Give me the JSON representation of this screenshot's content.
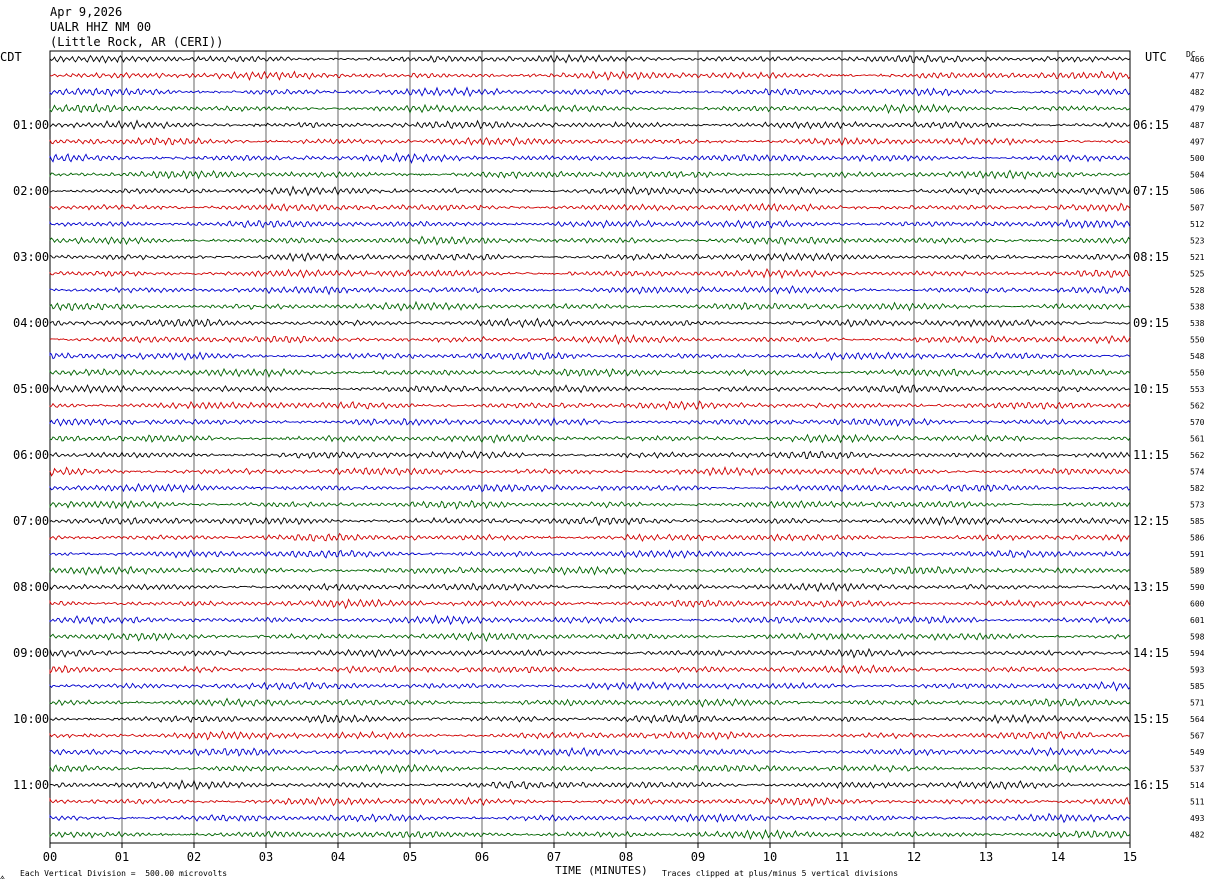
{
  "header": {
    "date": "Apr 9,2026",
    "station": "UALR HHZ NM 00",
    "location": "(Little Rock, AR (CERI))"
  },
  "left_tz": "CDT",
  "right_tz": "UTC",
  "dc_label": "DC",
  "footer": {
    "scale_note": "Each Vertical Division =  500.00 microvolts",
    "xlabel": "TIME (MINUTES)",
    "clip_note": "Traces clipped at plus/minus 5 vertical divisions"
  },
  "colors": {
    "trace_cycle": [
      "#000000",
      "#d00000",
      "#0000cc",
      "#006400"
    ],
    "grid": "#000000"
  },
  "chart_data": {
    "type": "line",
    "title": "UALR HHZ NM 00",
    "xlabel": "TIME (MINUTES)",
    "xlim": [
      0,
      15
    ],
    "x_ticks": [
      "00",
      "01",
      "02",
      "03",
      "04",
      "05",
      "06",
      "07",
      "08",
      "09",
      "10",
      "11",
      "12",
      "13",
      "14",
      "15"
    ],
    "rows_per_hour": 4,
    "left_hour_labels": [
      "01:00",
      "02:00",
      "03:00",
      "04:00",
      "05:00",
      "06:00",
      "07:00",
      "08:00",
      "09:00",
      "10:00",
      "11:00"
    ],
    "right_hour_labels": [
      "06:15",
      "07:15",
      "08:15",
      "09:15",
      "10:15",
      "11:15",
      "12:15",
      "13:15",
      "14:15",
      "15:15",
      "16:15"
    ],
    "dc_offsets": [
      466,
      477,
      482,
      479,
      487,
      497,
      500,
      504,
      506,
      507,
      512,
      523,
      521,
      525,
      528,
      538,
      538,
      550,
      548,
      550,
      553,
      562,
      570,
      561,
      562,
      574,
      582,
      573,
      585,
      586,
      591,
      589,
      590,
      600,
      601,
      598,
      594,
      593,
      585,
      571,
      564,
      567,
      549,
      537,
      514,
      511,
      493,
      482
    ]
  }
}
